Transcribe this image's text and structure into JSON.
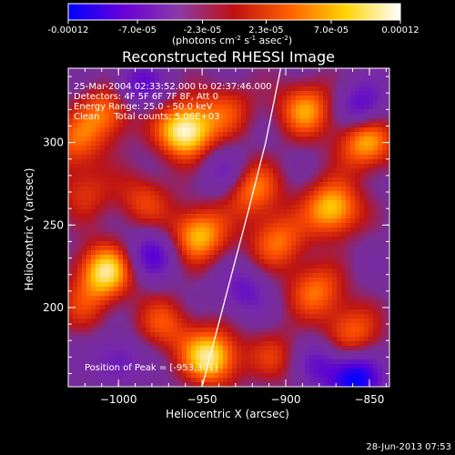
{
  "colorbar": {
    "tick_labels": [
      "-0.00012",
      "-7.0e-05",
      "-2.3e-05",
      "2.3e-05",
      "7.0e-05",
      "0.00012"
    ],
    "tick_values": [
      -0.00012,
      -7e-05,
      -2.3e-05,
      2.3e-05,
      7e-05,
      0.00012
    ],
    "units_main": "(photons cm",
    "units_exp1": "-2",
    "units_mid1": " s",
    "units_exp2": "-1",
    "units_mid2": " asec",
    "units_exp3": "-2",
    "units_end": ")",
    "colors": [
      "#0000ff",
      "#6a00d8",
      "#8a3aa6",
      "#c01010",
      "#ff6000",
      "#ffd400",
      "#ffffff"
    ]
  },
  "chart_data": {
    "type": "heatmap",
    "title": "Reconstructed RHESSI Image",
    "xlabel": "Heliocentric X (arcsec)",
    "ylabel": "Heliocentric Y (arcsec)",
    "xlim": [
      -1030,
      -838
    ],
    "ylim": [
      152,
      345
    ],
    "x_ticks": [
      -1000,
      -950,
      -900,
      -850
    ],
    "x_tick_labels": [
      "−1000",
      "−950",
      "−900",
      "−850"
    ],
    "y_ticks": [
      200,
      250,
      300
    ],
    "y_tick_labels": [
      "200",
      "250",
      "300"
    ],
    "annotations": [
      "25-Mar-2004 02:33:52.000 to 02:37:46.000",
      "Detectors: 4F 5F 6F 7F 8F, Att 0",
      "Energy Range: 25.0 - 50.0 keV",
      "Clean     Total counts: 5.06E+03"
    ],
    "peak_label": "Position of Peak = [-953,301]",
    "peak_position": [
      -953,
      301
    ],
    "limb_curve": [
      [
        -950,
        152
      ],
      [
        -935,
        210
      ],
      [
        -922,
        260
      ],
      [
        -912,
        300
      ],
      [
        -903,
        345
      ]
    ],
    "blobs": [
      {
        "x": -960,
        "y": 307,
        "amp": 1.0
      },
      {
        "x": -1007,
        "y": 318,
        "amp": 0.55
      },
      {
        "x": -952,
        "y": 244,
        "amp": 0.75
      },
      {
        "x": -920,
        "y": 272,
        "amp": 0.6
      },
      {
        "x": -1008,
        "y": 222,
        "amp": 0.85
      },
      {
        "x": -973,
        "y": 190,
        "amp": 0.45
      },
      {
        "x": -945,
        "y": 170,
        "amp": 0.9
      },
      {
        "x": -905,
        "y": 240,
        "amp": 0.55
      },
      {
        "x": -888,
        "y": 320,
        "amp": 0.65
      },
      {
        "x": -872,
        "y": 260,
        "amp": 0.8
      },
      {
        "x": -852,
        "y": 300,
        "amp": 0.7
      },
      {
        "x": -882,
        "y": 210,
        "amp": 0.55
      },
      {
        "x": -860,
        "y": 185,
        "amp": 0.5
      },
      {
        "x": -906,
        "y": 170,
        "amp": 0.35
      },
      {
        "x": -1020,
        "y": 270,
        "amp": 0.35
      },
      {
        "x": -1026,
        "y": 300,
        "amp": 0.45
      },
      {
        "x": -1022,
        "y": 200,
        "amp": 0.3
      },
      {
        "x": -935,
        "y": 320,
        "amp": 0.4
      },
      {
        "x": -985,
        "y": 265,
        "amp": 0.4
      }
    ],
    "sinks": [
      {
        "x": -858,
        "y": 156,
        "amp": 1.0
      },
      {
        "x": -980,
        "y": 232,
        "amp": 0.55
      },
      {
        "x": -988,
        "y": 335,
        "amp": 0.5
      },
      {
        "x": -855,
        "y": 322,
        "amp": 0.55
      },
      {
        "x": -925,
        "y": 210,
        "amp": 0.4
      },
      {
        "x": -1000,
        "y": 168,
        "amp": 0.4
      },
      {
        "x": -936,
        "y": 282,
        "amp": 0.35
      },
      {
        "x": -880,
        "y": 165,
        "amp": 0.45
      }
    ]
  },
  "footer": {
    "timestamp": "28-Jun-2013 07:53"
  }
}
